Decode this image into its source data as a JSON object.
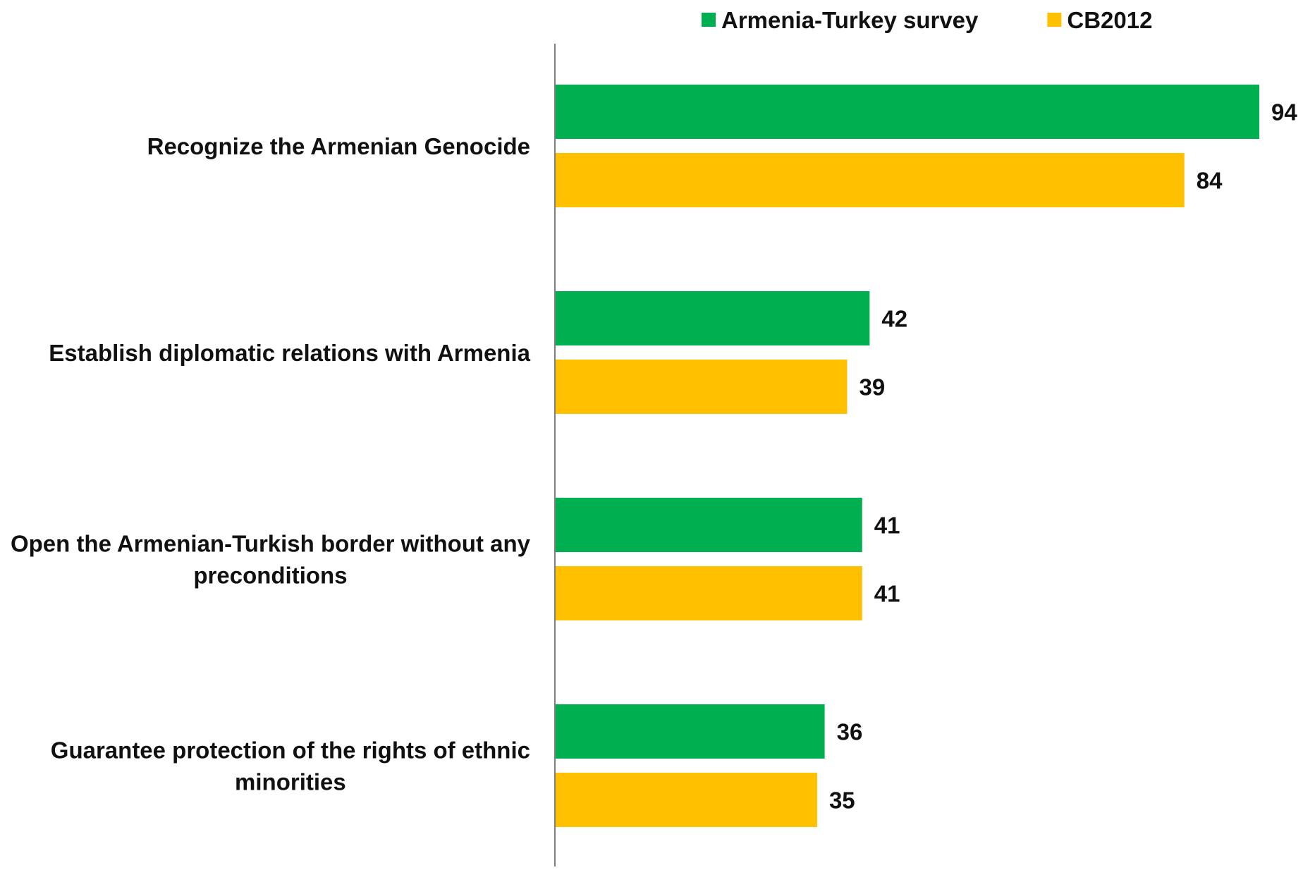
{
  "chart_data": {
    "type": "bar",
    "orientation": "horizontal",
    "categories": [
      [
        "Recognize the Armenian Genocide"
      ],
      [
        "Establish diplomatic relations with Armenia"
      ],
      [
        "Open the Armenian-Turkish border without any",
        "preconditions"
      ],
      [
        "Guarantee protection of the rights of ethnic",
        "minorities"
      ]
    ],
    "series": [
      {
        "name": "Armenia-Turkey survey",
        "color": "#00B050",
        "values": [
          94,
          42,
          41,
          36
        ]
      },
      {
        "name": "CB2012",
        "color": "#FFC000",
        "values": [
          84,
          39,
          41,
          35
        ]
      }
    ],
    "xlim": [
      0,
      94
    ],
    "legend_position": "top",
    "grid": false,
    "data_labels": true
  }
}
